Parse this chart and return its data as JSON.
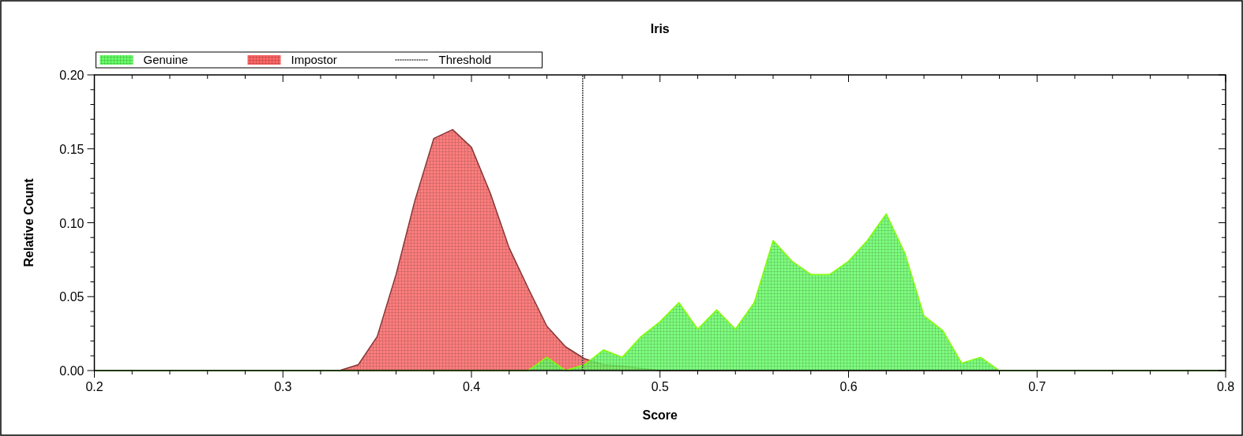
{
  "chart_data": {
    "type": "area",
    "title": "Iris",
    "xlabel": "Score",
    "ylabel": "Relative Count",
    "xlim": [
      0.2,
      0.8
    ],
    "ylim": [
      0,
      0.2
    ],
    "xticks": [
      0.2,
      {
        "value": 0.22,
        "label": null
      },
      {
        "value": 0.24,
        "label": null
      },
      {
        "value": 0.26,
        "label": null
      },
      {
        "value": 0.28,
        "label": null
      },
      0.3,
      {
        "value": 0.32,
        "label": null
      },
      {
        "value": 0.34,
        "label": null
      },
      {
        "value": 0.36,
        "label": null
      },
      {
        "value": 0.38,
        "label": null
      },
      0.4,
      {
        "value": 0.42,
        "label": null
      },
      {
        "value": 0.44,
        "label": null
      },
      {
        "value": 0.46,
        "label": null
      },
      {
        "value": 0.48,
        "label": null
      },
      0.5,
      {
        "value": 0.52,
        "label": null
      },
      {
        "value": 0.54,
        "label": null
      },
      {
        "value": 0.56,
        "label": null
      },
      {
        "value": 0.58,
        "label": null
      },
      0.6,
      {
        "value": 0.62,
        "label": null
      },
      {
        "value": 0.64,
        "label": null
      },
      {
        "value": 0.66,
        "label": null
      },
      {
        "value": 0.68,
        "label": null
      },
      0.7,
      {
        "value": 0.72,
        "label": null
      },
      {
        "value": 0.74,
        "label": null
      },
      {
        "value": 0.76,
        "label": null
      },
      {
        "value": 0.78,
        "label": null
      },
      0.8
    ],
    "yticks": [
      {
        "value": 0,
        "label": "0.00"
      },
      {
        "value": 0.01,
        "label": null
      },
      {
        "value": 0.02,
        "label": null
      },
      {
        "value": 0.03,
        "label": null
      },
      {
        "value": 0.04,
        "label": null
      },
      {
        "value": 0.05,
        "label": "0.05"
      },
      {
        "value": 0.06,
        "label": null
      },
      {
        "value": 0.07,
        "label": null
      },
      {
        "value": 0.08,
        "label": null
      },
      {
        "value": 0.09,
        "label": null
      },
      {
        "value": 0.1,
        "label": "0.10"
      },
      {
        "value": 0.11,
        "label": null
      },
      {
        "value": 0.12,
        "label": null
      },
      {
        "value": 0.13,
        "label": null
      },
      {
        "value": 0.14,
        "label": null
      },
      {
        "value": 0.15,
        "label": "0.15"
      },
      {
        "value": 0.16,
        "label": null
      },
      {
        "value": 0.17,
        "label": null
      },
      {
        "value": 0.18,
        "label": null
      },
      {
        "value": 0.19,
        "label": null
      },
      {
        "value": 0.2,
        "label": "0.20"
      }
    ],
    "legend": "top left",
    "series": [
      {
        "name": "Genuine",
        "color": "#66ff66",
        "x": [
          0.2,
          0.43,
          0.44,
          0.45,
          0.46,
          0.47,
          0.48,
          0.49,
          0.5,
          0.51,
          0.52,
          0.53,
          0.54,
          0.55,
          0.56,
          0.57,
          0.58,
          0.59,
          0.6,
          0.61,
          0.62,
          0.63,
          0.64,
          0.65,
          0.66,
          0.67,
          0.68,
          0.8
        ],
        "values": [
          0,
          0,
          0.009,
          0,
          0.004,
          0.014,
          0.009,
          0.023,
          0.033,
          0.046,
          0.028,
          0.041,
          0.028,
          0.046,
          0.088,
          0.074,
          0.065,
          0.065,
          0.074,
          0.088,
          0.106,
          0.079,
          0.037,
          0.027,
          0.005,
          0.009,
          0,
          0
        ]
      },
      {
        "name": "Impostor",
        "color": "#ff6666",
        "x": [
          0.2,
          0.33,
          0.34,
          0.35,
          0.36,
          0.37,
          0.38,
          0.39,
          0.4,
          0.41,
          0.42,
          0.43,
          0.44,
          0.45,
          0.46,
          0.47,
          0.48,
          0.49,
          0.5,
          0.8
        ],
        "values": [
          0,
          0,
          0.004,
          0.023,
          0.065,
          0.115,
          0.157,
          0.163,
          0.151,
          0.12,
          0.083,
          0.056,
          0.03,
          0.016,
          0.008,
          0.004,
          0.003,
          0.0015,
          0,
          0
        ]
      }
    ],
    "ref_lines": [
      {
        "axis": "x",
        "value": 0.459,
        "label": "Threshold",
        "color": "#404040",
        "line_style": "dotted"
      }
    ]
  }
}
